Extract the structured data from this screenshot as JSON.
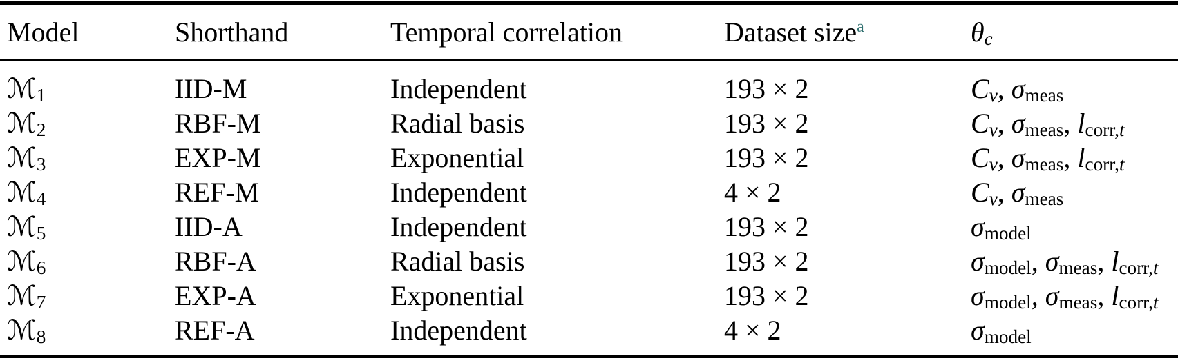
{
  "colors": {
    "text": "#000000",
    "rule": "#000000",
    "superscript_accent": "#2f6f6f",
    "background": "#ffffff"
  },
  "table": {
    "headers": [
      {
        "key": "model",
        "text": "Model"
      },
      {
        "key": "shorthand",
        "text": "Shorthand"
      },
      {
        "key": "temporal_correlation",
        "text": "Temporal correlation"
      },
      {
        "key": "dataset_size",
        "text": "Dataset size",
        "sup": "a"
      },
      {
        "key": "theta_c",
        "math": [
          {
            "base": "θ",
            "base_italic": true,
            "subs": [
              {
                "t": "c",
                "i": true
              }
            ]
          }
        ]
      }
    ],
    "rows": [
      {
        "model": {
          "base": "ℳ",
          "sub": "1"
        },
        "shorthand": "IID-M",
        "temporal_correlation": "Independent",
        "dataset_size": "193 × 2",
        "theta_c": [
          {
            "base": "C",
            "base_italic": true,
            "subs": [
              {
                "t": "v",
                "i": true
              }
            ]
          },
          {
            "base": "σ",
            "base_italic": true,
            "subs": [
              {
                "t": "meas",
                "i": false
              }
            ]
          }
        ]
      },
      {
        "model": {
          "base": "ℳ",
          "sub": "2"
        },
        "shorthand": "RBF-M",
        "temporal_correlation": "Radial basis",
        "dataset_size": "193 × 2",
        "theta_c": [
          {
            "base": "C",
            "base_italic": true,
            "subs": [
              {
                "t": "v",
                "i": true
              }
            ]
          },
          {
            "base": "σ",
            "base_italic": true,
            "subs": [
              {
                "t": "meas",
                "i": false
              }
            ]
          },
          {
            "base": "l",
            "base_italic": true,
            "subs": [
              {
                "t": "corr,",
                "i": false
              },
              {
                "t": "t",
                "i": true
              }
            ]
          }
        ]
      },
      {
        "model": {
          "base": "ℳ",
          "sub": "3"
        },
        "shorthand": "EXP-M",
        "temporal_correlation": "Exponential",
        "dataset_size": "193 × 2",
        "theta_c": [
          {
            "base": "C",
            "base_italic": true,
            "subs": [
              {
                "t": "v",
                "i": true
              }
            ]
          },
          {
            "base": "σ",
            "base_italic": true,
            "subs": [
              {
                "t": "meas",
                "i": false
              }
            ]
          },
          {
            "base": "l",
            "base_italic": true,
            "subs": [
              {
                "t": "corr,",
                "i": false
              },
              {
                "t": "t",
                "i": true
              }
            ]
          }
        ]
      },
      {
        "model": {
          "base": "ℳ",
          "sub": "4"
        },
        "shorthand": "REF-M",
        "temporal_correlation": "Independent",
        "dataset_size": "4 × 2",
        "theta_c": [
          {
            "base": "C",
            "base_italic": true,
            "subs": [
              {
                "t": "v",
                "i": true
              }
            ]
          },
          {
            "base": "σ",
            "base_italic": true,
            "subs": [
              {
                "t": "meas",
                "i": false
              }
            ]
          }
        ]
      },
      {
        "model": {
          "base": "ℳ",
          "sub": "5"
        },
        "shorthand": "IID-A",
        "temporal_correlation": "Independent",
        "dataset_size": "193 × 2",
        "theta_c": [
          {
            "base": "σ",
            "base_italic": true,
            "subs": [
              {
                "t": "model",
                "i": false
              }
            ]
          }
        ]
      },
      {
        "model": {
          "base": "ℳ",
          "sub": "6"
        },
        "shorthand": "RBF-A",
        "temporal_correlation": "Radial basis",
        "dataset_size": "193 × 2",
        "theta_c": [
          {
            "base": "σ",
            "base_italic": true,
            "subs": [
              {
                "t": "model",
                "i": false
              }
            ]
          },
          {
            "base": "σ",
            "base_italic": true,
            "subs": [
              {
                "t": "meas",
                "i": false
              }
            ]
          },
          {
            "base": "l",
            "base_italic": true,
            "subs": [
              {
                "t": "corr,",
                "i": false
              },
              {
                "t": "t",
                "i": true
              }
            ]
          }
        ]
      },
      {
        "model": {
          "base": "ℳ",
          "sub": "7"
        },
        "shorthand": "EXP-A",
        "temporal_correlation": "Exponential",
        "dataset_size": "193 × 2",
        "theta_c": [
          {
            "base": "σ",
            "base_italic": true,
            "subs": [
              {
                "t": "model",
                "i": false
              }
            ]
          },
          {
            "base": "σ",
            "base_italic": true,
            "subs": [
              {
                "t": "meas",
                "i": false
              }
            ]
          },
          {
            "base": "l",
            "base_italic": true,
            "subs": [
              {
                "t": "corr,",
                "i": false
              },
              {
                "t": "t",
                "i": true
              }
            ]
          }
        ]
      },
      {
        "model": {
          "base": "ℳ",
          "sub": "8"
        },
        "shorthand": "REF-A",
        "temporal_correlation": "Independent",
        "dataset_size": "4 × 2",
        "theta_c": [
          {
            "base": "σ",
            "base_italic": true,
            "subs": [
              {
                "t": "model",
                "i": false
              }
            ]
          }
        ]
      }
    ],
    "separator": ", "
  }
}
